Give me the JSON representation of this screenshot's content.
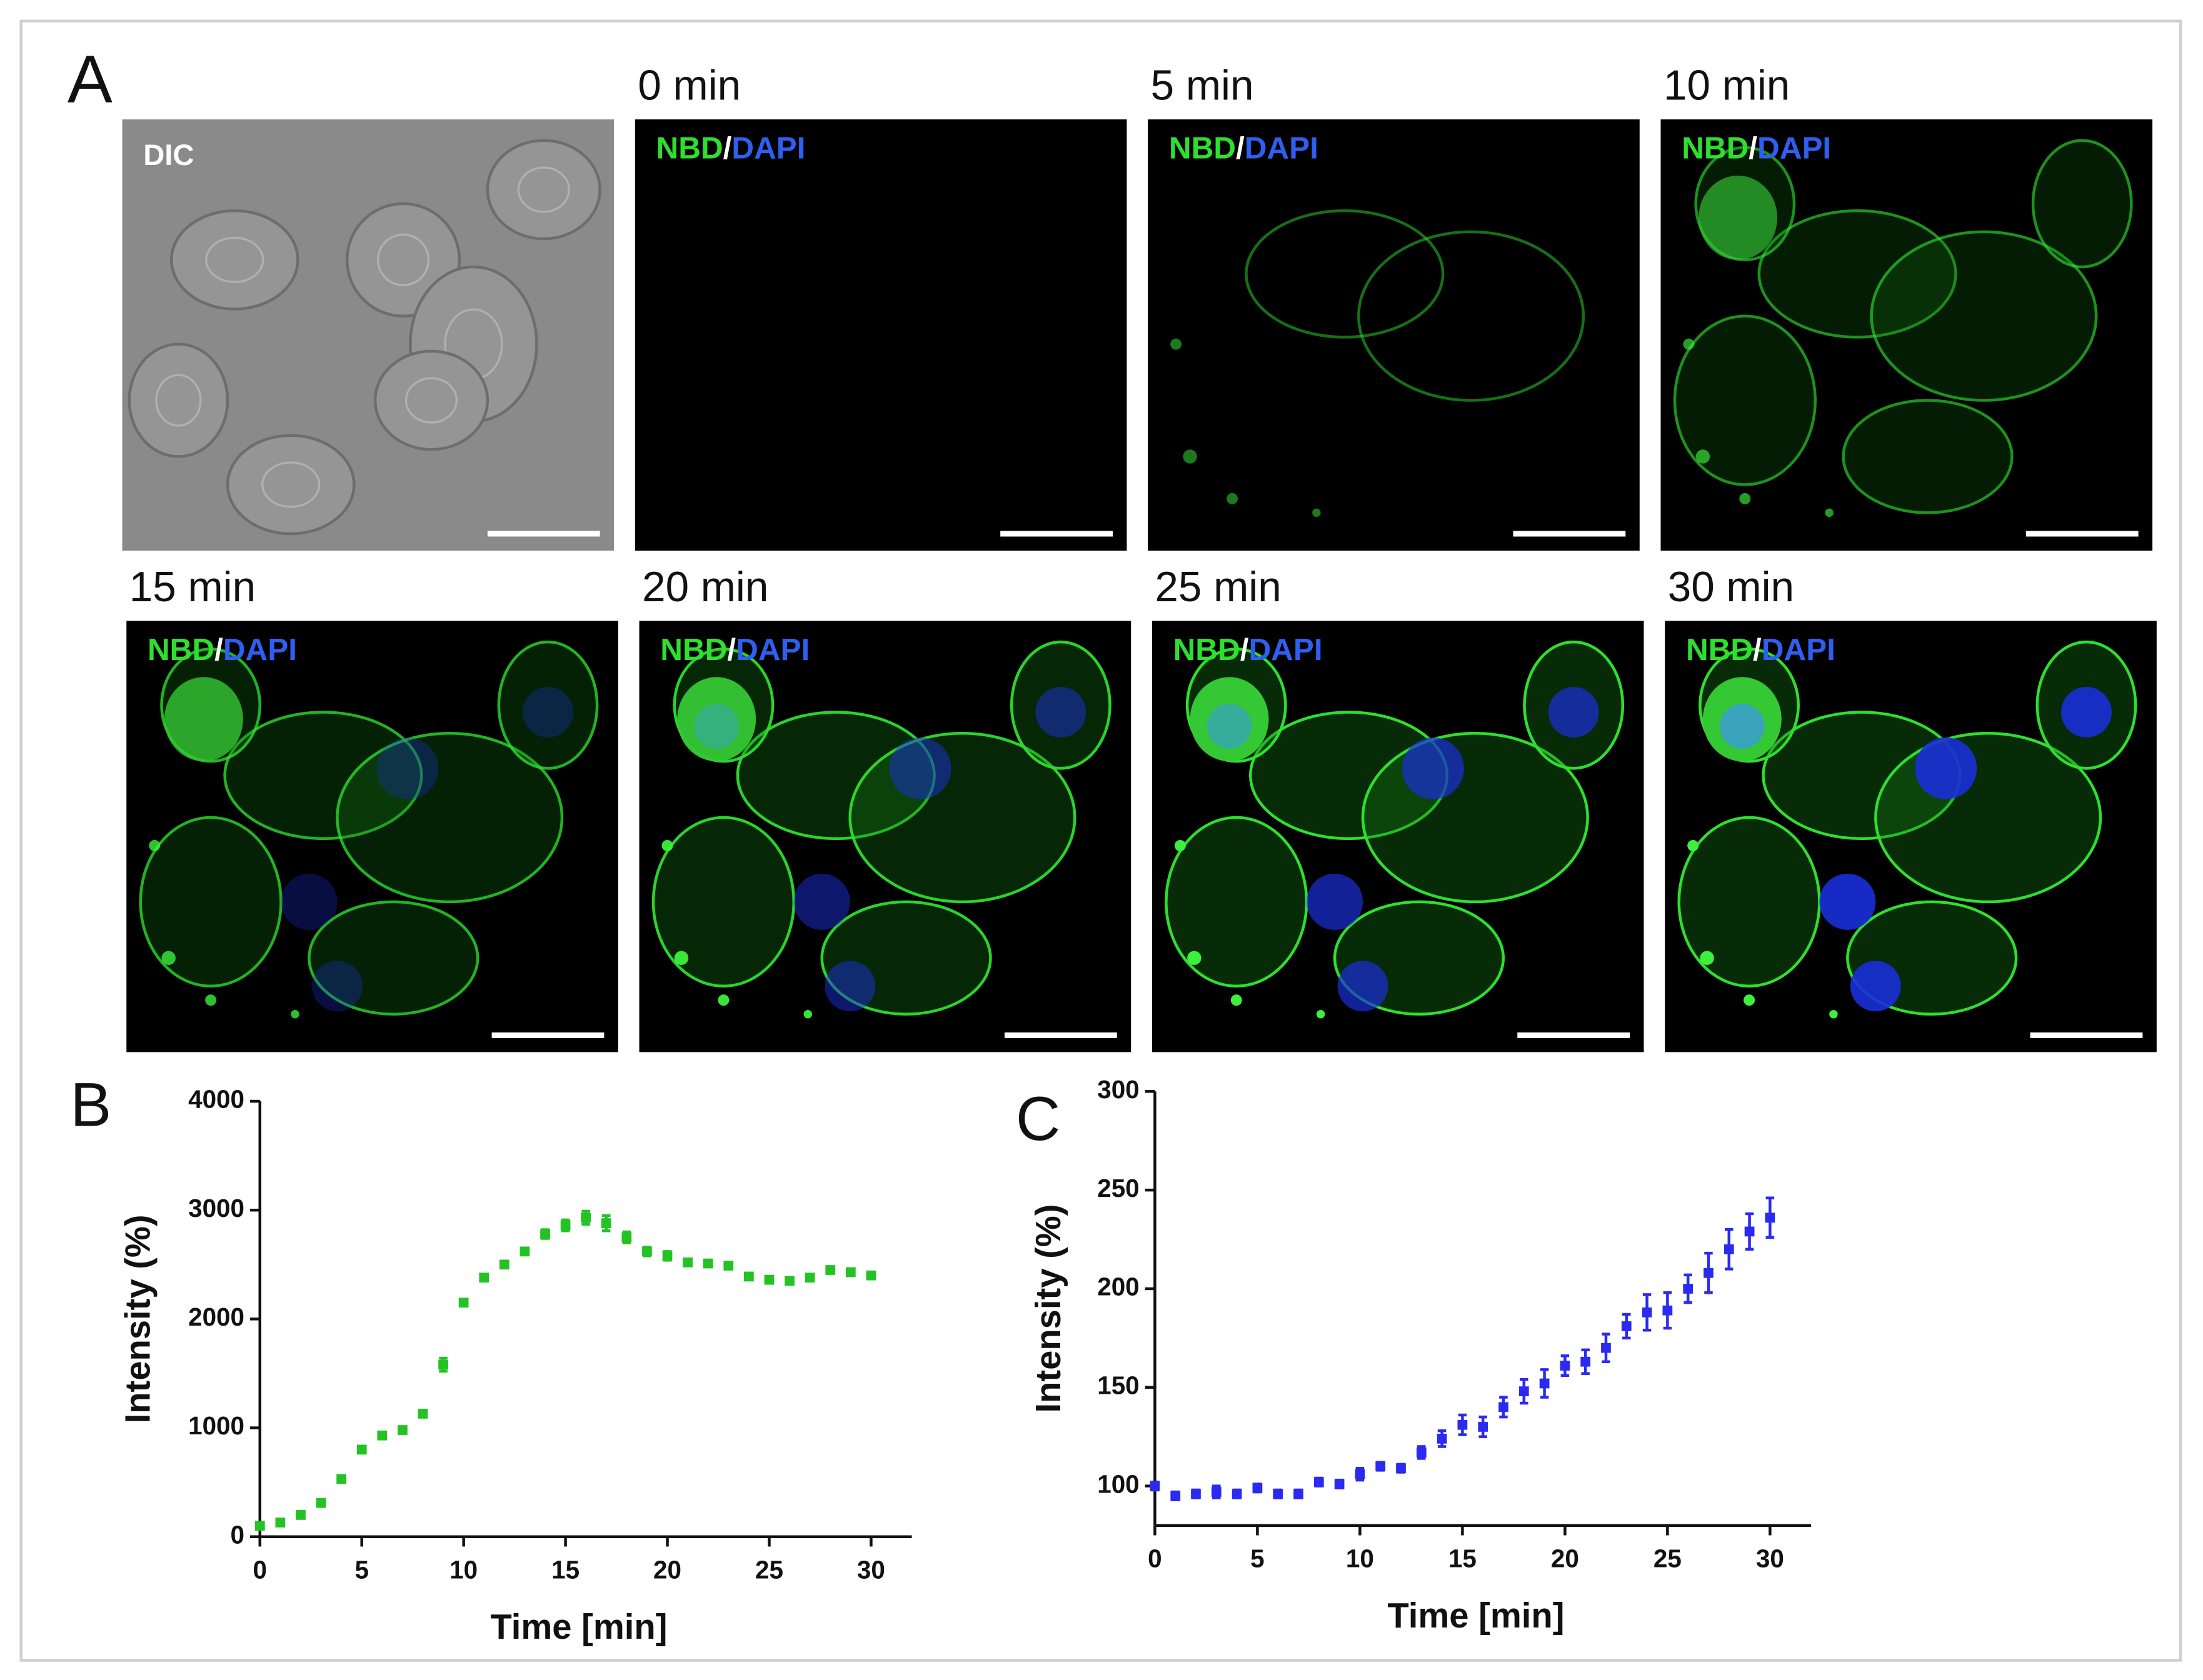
{
  "panel_a": {
    "label": "A",
    "dic_label": "DIC",
    "stain": {
      "green": "NBD",
      "separator": "/",
      "blue": "DAPI"
    },
    "frames": [
      "0 min",
      "5 min",
      "10 min",
      "15 min",
      "20 min",
      "25 min",
      "30 min"
    ]
  },
  "chart_data": [
    {
      "type": "scatter",
      "panel_label": "B",
      "x_label": "Time [min]",
      "y_label": "Intensity  (%)",
      "color": "#22c322",
      "x": [
        0,
        1,
        2,
        3,
        4,
        5,
        6,
        7,
        8,
        9,
        10,
        11,
        12,
        13,
        14,
        15,
        16,
        17,
        18,
        19,
        20,
        21,
        22,
        23,
        24,
        25,
        26,
        27,
        28,
        29,
        30
      ],
      "values": [
        100,
        130,
        200,
        310,
        530,
        800,
        930,
        980,
        1130,
        1580,
        2150,
        2380,
        2500,
        2620,
        2780,
        2860,
        2930,
        2880,
        2750,
        2620,
        2580,
        2520,
        2510,
        2490,
        2390,
        2360,
        2350,
        2380,
        2450,
        2430,
        2400
      ],
      "errors": [
        20,
        20,
        20,
        20,
        30,
        30,
        30,
        30,
        30,
        60,
        30,
        30,
        30,
        30,
        40,
        50,
        60,
        70,
        50,
        40,
        40,
        30,
        30,
        30,
        30,
        30,
        30,
        30,
        30,
        30,
        30
      ],
      "xlim": [
        0,
        32
      ],
      "xticks": [
        0,
        5,
        10,
        15,
        20,
        25,
        30
      ],
      "ylim": [
        0,
        4000
      ],
      "yticks": [
        0,
        1000,
        2000,
        3000,
        4000
      ]
    },
    {
      "type": "scatter",
      "panel_label": "C",
      "x_label": "Time [min]",
      "y_label": "Intensity  (%)",
      "color": "#2a2af0",
      "x": [
        0,
        1,
        2,
        3,
        4,
        5,
        6,
        7,
        8,
        9,
        10,
        11,
        12,
        13,
        14,
        15,
        16,
        17,
        18,
        19,
        20,
        21,
        22,
        23,
        24,
        25,
        26,
        27,
        28,
        29,
        30
      ],
      "values": [
        100,
        95,
        96,
        97,
        96,
        99,
        96,
        96,
        102,
        101,
        106,
        110,
        109,
        117,
        124,
        131,
        130,
        140,
        148,
        152,
        161,
        163,
        170,
        181,
        188,
        189,
        200,
        208,
        220,
        229,
        236
      ],
      "errors": [
        2,
        2,
        2,
        3,
        2,
        2,
        2,
        2,
        2,
        2,
        3,
        2,
        2,
        3,
        4,
        5,
        5,
        5,
        6,
        7,
        5,
        6,
        7,
        6,
        9,
        9,
        7,
        10,
        10,
        9,
        10
      ],
      "xlim": [
        0,
        32
      ],
      "xticks": [
        0,
        5,
        10,
        15,
        20,
        25,
        30
      ],
      "ylim": [
        80,
        300
      ],
      "yticks": [
        100,
        150,
        200,
        250,
        300
      ]
    }
  ]
}
